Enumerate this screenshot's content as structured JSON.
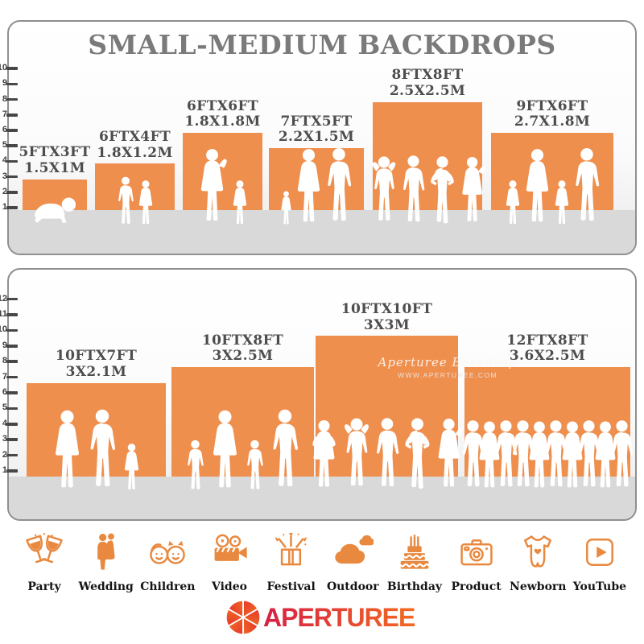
{
  "title": "SMALL-MEDIUM BACKDROPS",
  "watermark": {
    "line1": "Aperturee Backdrop",
    "line2": "WWW.APERTUREE.COM"
  },
  "logo": {
    "text": "APERTUREE"
  },
  "colors": {
    "bar_orange": "#EF8F4E",
    "icon_orange": "#E8893F",
    "title_gray": "#7A7A7A",
    "label_gray": "#4D4D4D",
    "floor_gray": "#D9D9D9",
    "logo_red": "#D61F45",
    "logo_orange": "#F26A21"
  },
  "categories": [
    {
      "label": "Party",
      "icon": "party-icon"
    },
    {
      "label": "Wedding",
      "icon": "wedding-icon"
    },
    {
      "label": "Children",
      "icon": "children-icon"
    },
    {
      "label": "Video",
      "icon": "video-icon"
    },
    {
      "label": "Festival",
      "icon": "festival-icon"
    },
    {
      "label": "Outdoor",
      "icon": "outdoor-icon"
    },
    {
      "label": "Birthday",
      "icon": "birthday-icon"
    },
    {
      "label": "Product",
      "icon": "product-icon"
    },
    {
      "label": "Newborn",
      "icon": "newborn-icon"
    },
    {
      "label": "YouTube",
      "icon": "youtube-icon"
    }
  ],
  "chart_data": [
    {
      "type": "bar",
      "panel": "top",
      "title": "SMALL-MEDIUM BACKDROPS",
      "ylim": [
        0,
        10
      ],
      "yticks": [
        1,
        2,
        3,
        4,
        5,
        6,
        7,
        8,
        9,
        10
      ],
      "grid": false,
      "legend": "none",
      "categories": [
        "5FTX3FT",
        "6FTX4FT",
        "6FTX6FT",
        "7FTX5FT",
        "8FTX8FT",
        "9FTX6FT"
      ],
      "values": [
        3,
        4,
        6,
        5,
        8,
        6
      ],
      "bars": [
        {
          "size_ft": "5FTX3FT",
          "size_m": "1.5X1M",
          "width_ft": 5,
          "height_ft": 3,
          "people": [
            "baby"
          ]
        },
        {
          "size_ft": "6FTX4FT",
          "size_m": "1.8X1.2M",
          "width_ft": 6,
          "height_ft": 4,
          "people": [
            "boy",
            "girl"
          ]
        },
        {
          "size_ft": "6FTX6FT",
          "size_m": "1.8X1.8M",
          "width_ft": 6,
          "height_ft": 6,
          "people": [
            "woman-up",
            "girl"
          ]
        },
        {
          "size_ft": "7FTX5FT",
          "size_m": "2.2X1.5M",
          "width_ft": 7,
          "height_ft": 5,
          "people": [
            "toddler",
            "woman",
            "man"
          ]
        },
        {
          "size_ft": "8FTX8FT",
          "size_m": "2.5X2.5M",
          "width_ft": 8,
          "height_ft": 8,
          "people": [
            "man-up",
            "man",
            "man-hips",
            "woman-up"
          ]
        },
        {
          "size_ft": "9FTX6FT",
          "size_m": "2.7X1.8M",
          "width_ft": 9,
          "height_ft": 6,
          "people": [
            "girl",
            "woman",
            "girl",
            "man"
          ]
        }
      ]
    },
    {
      "type": "bar",
      "panel": "bottom",
      "title": "",
      "ylim": [
        0,
        12
      ],
      "yticks": [
        1,
        2,
        3,
        4,
        5,
        6,
        7,
        8,
        9,
        10,
        11,
        12
      ],
      "grid": false,
      "legend": "none",
      "categories": [
        "10FTX7FT",
        "10FTX8FT",
        "10FTX10FT",
        "12FTX8FT"
      ],
      "values": [
        7,
        8,
        10,
        8
      ],
      "bars": [
        {
          "size_ft": "10FTX7FT",
          "size_m": "3X2.1M",
          "width_ft": 10,
          "height_ft": 7,
          "people": [
            "woman",
            "man",
            "girl"
          ]
        },
        {
          "size_ft": "10FTX8FT",
          "size_m": "3X2.5M",
          "width_ft": 10,
          "height_ft": 8,
          "people": [
            "boy",
            "woman",
            "boy",
            "man"
          ]
        },
        {
          "size_ft": "10FTX10FT",
          "size_m": "3X3M",
          "width_ft": 10,
          "height_ft": 10,
          "people": [
            "woman-hips",
            "man-up",
            "man",
            "man-hips",
            "woman-up"
          ]
        },
        {
          "size_ft": "12FTX8FT",
          "size_m": "3.6X2.5M",
          "width_ft": 12,
          "height_ft": 8,
          "people": [
            "man",
            "woman",
            "man",
            "man",
            "woman",
            "man",
            "woman",
            "man",
            "woman",
            "man"
          ]
        }
      ]
    }
  ]
}
